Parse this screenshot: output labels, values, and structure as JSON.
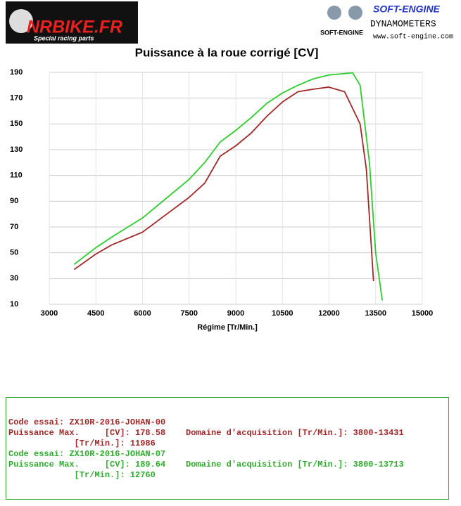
{
  "header": {
    "brand": "NRBIKE.FR",
    "tagline": "Special racing parts",
    "dyno_brand": "SOFT-ENGINE",
    "dyno_small": "SOFT-ENGINE",
    "dyno_label": "DYNAMOMETERS",
    "dyno_url": "www.soft-engine.com"
  },
  "chart_data": {
    "type": "line",
    "title": "Puissance à la roue corrigé [CV]",
    "x_label": "Régime [Tr/Min.]",
    "xlim": [
      3000,
      15000
    ],
    "xticks": [
      3000,
      4500,
      6000,
      7500,
      9000,
      10500,
      12000,
      13500,
      15000
    ],
    "ylim": [
      10,
      190
    ],
    "yticks": [
      10,
      30,
      50,
      70,
      90,
      110,
      130,
      150,
      170,
      190
    ],
    "grid": true,
    "series": [
      {
        "name": "ZX10R-2016-JOHAN-00",
        "color": "#a02828",
        "x": [
          3800,
          4500,
          5000,
          6000,
          7000,
          7500,
          8000,
          8500,
          9000,
          9500,
          10000,
          10500,
          11000,
          11500,
          11986,
          12500,
          13000,
          13200,
          13431
        ],
        "values": [
          37,
          49,
          56,
          66,
          84,
          93,
          104,
          125,
          133,
          143,
          156,
          167,
          175,
          177,
          178.58,
          175,
          150,
          115,
          28
        ]
      },
      {
        "name": "ZX10R-2016-JOHAN-07",
        "color": "#2ecc2e",
        "x": [
          3800,
          4500,
          5000,
          6000,
          7000,
          7500,
          8000,
          8500,
          9000,
          9500,
          10000,
          10500,
          11000,
          11500,
          12000,
          12760,
          13000,
          13300,
          13500,
          13713
        ],
        "values": [
          41,
          54,
          62,
          77,
          97,
          107,
          120,
          136,
          145,
          155,
          166,
          174,
          180,
          185,
          188,
          189.64,
          180,
          120,
          50,
          13
        ]
      }
    ]
  },
  "info": {
    "runs": [
      {
        "color": "#a02828",
        "lines": [
          "Code essai: ZX10R-2016-JOHAN-00",
          "Puissance Max.     [CV]: 178.58    Domaine d'acquisition [Tr/Min.]: 3800-13431",
          "             [Tr/Min.]: 11986"
        ]
      },
      {
        "color": "#2eaa2e",
        "lines": [
          "Code essai: ZX10R-2016-JOHAN-07",
          "Puissance Max.     [CV]: 189.64    Domaine d'acquisition [Tr/Min.]: 3800-13713",
          "             [Tr/Min.]: 12760"
        ]
      }
    ]
  }
}
